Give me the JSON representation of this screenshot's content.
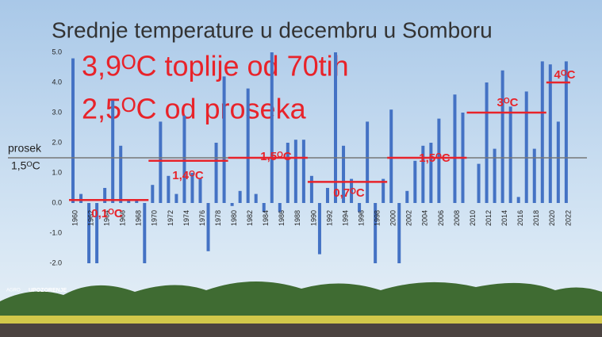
{
  "chart_data": {
    "type": "bar",
    "title": "Srednje temperature u decembru u Somboru",
    "annotations": [
      "3,9ᴼC toplije od 70tih",
      "2,5ᴼC od proseka"
    ],
    "mean": {
      "label": "prosek",
      "value": 1.5,
      "value_label": "1,5ᴼC"
    },
    "decade_averages": {
      "values": [
        0.1,
        1.4,
        1.5,
        0.7,
        1.5,
        3.0,
        4.0
      ],
      "value_labels": [
        "0,1ᴼC",
        "1,4ᴼC",
        "1,5ᴼC",
        "0,7ᴼC",
        "1,5ᴼC",
        "3ᴼC",
        "4ᴼC"
      ],
      "color": "#e8232a"
    },
    "logo": [
      "AGRO",
      "UPOZORENJE"
    ],
    "categories": [
      "1960",
      null,
      "1962",
      null,
      "1964",
      null,
      "1966",
      null,
      "1968",
      null,
      "1970",
      null,
      "1972",
      null,
      "1974",
      null,
      "1976",
      null,
      "1978",
      null,
      "1980",
      null,
      "1982",
      null,
      "1984",
      null,
      "1986",
      null,
      "1988",
      null,
      "1990",
      null,
      "1992",
      null,
      "1994",
      null,
      "1996",
      null,
      "1998",
      null,
      "2000",
      null,
      "2002",
      null,
      "2004",
      null,
      "2006",
      null,
      "2008",
      null,
      "2010",
      null,
      "2012",
      null,
      "2014",
      null,
      "2016",
      null,
      "2018",
      null,
      "2020",
      null,
      "2022"
    ],
    "values": [
      4.8,
      0.3,
      -2.0,
      -2.0,
      0.5,
      3.4,
      1.9,
      0.1,
      0.1,
      -2.0,
      0.6,
      2.7,
      0.9,
      0.3,
      2.9,
      1.0,
      0.8,
      -1.6,
      2.0,
      4.2,
      -0.1,
      0.4,
      3.8,
      0.3,
      -0.3,
      5.0,
      -0.3,
      2.0,
      2.1,
      2.1,
      0.9,
      -1.7,
      0.5,
      5.0,
      1.9,
      0.8,
      -0.3,
      2.7,
      -2.0,
      0.8,
      3.1,
      -2.0,
      0.4,
      1.4,
      1.9,
      2.0,
      2.8,
      0.0,
      3.6,
      3.0,
      0.0,
      1.3,
      4.0,
      1.8,
      4.4,
      3.2,
      0.2,
      3.7,
      1.8,
      4.7,
      4.6,
      2.7,
      4.7
    ],
    "color": "#4472c4",
    "ylim": [
      -2,
      5
    ],
    "yticks": [
      {
        "value": -2,
        "label": "-2.0"
      },
      {
        "value": -1,
        "label": "-1.0"
      },
      {
        "value": 0,
        "label": "0.0"
      },
      {
        "value": 1,
        "label": "1.0"
      },
      {
        "value": 2,
        "label": "2.0"
      },
      {
        "value": 3,
        "label": "3.0"
      },
      {
        "value": 4,
        "label": "4.0"
      },
      {
        "value": 5,
        "label": "5.0"
      }
    ],
    "grid": false
  }
}
